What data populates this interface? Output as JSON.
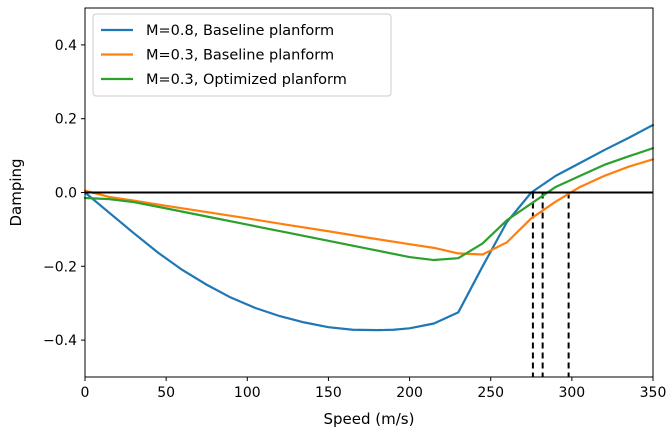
{
  "chart_data": {
    "type": "line",
    "title": "",
    "xlabel": "Speed (m/s)",
    "ylabel": "Damping",
    "xlim": [
      0,
      350
    ],
    "ylim": [
      -0.5,
      0.5
    ],
    "xticks": [
      0,
      50,
      100,
      150,
      200,
      250,
      300,
      350
    ],
    "yticks": [
      -0.4,
      -0.2,
      0.0,
      0.2,
      0.4
    ],
    "xtick_labels": [
      "0",
      "50",
      "100",
      "150",
      "200",
      "250",
      "300",
      "350"
    ],
    "ytick_labels": [
      "−0.4",
      "−0.2",
      "0.0",
      "0.2",
      "0.4"
    ],
    "grid": false,
    "legend_position": "top-left",
    "zero_line": {
      "y": 0.0,
      "color": "#000000"
    },
    "series": [
      {
        "name": "M=0.8, Baseline planform",
        "color": "#1f77b4",
        "x": [
          0,
          15,
          30,
          45,
          60,
          75,
          90,
          105,
          120,
          135,
          150,
          165,
          180,
          190,
          200,
          215,
          230,
          245,
          260,
          275,
          290,
          305,
          320,
          335,
          350
        ],
        "y": [
          0.0,
          -0.055,
          -0.11,
          -0.163,
          -0.21,
          -0.25,
          -0.285,
          -0.313,
          -0.335,
          -0.352,
          -0.365,
          -0.372,
          -0.373,
          -0.372,
          -0.368,
          -0.355,
          -0.325,
          -0.2,
          -0.08,
          0.0,
          0.045,
          0.08,
          0.115,
          0.148,
          0.183
        ]
      },
      {
        "name": "M=0.3, Baseline planform",
        "color": "#ff7f0e",
        "x": [
          0,
          15,
          30,
          50,
          75,
          100,
          125,
          150,
          175,
          200,
          215,
          230,
          245,
          260,
          275,
          290,
          305,
          320,
          335,
          350
        ],
        "y": [
          0.005,
          -0.012,
          -0.022,
          -0.036,
          -0.053,
          -0.07,
          -0.088,
          -0.105,
          -0.123,
          -0.14,
          -0.15,
          -0.165,
          -0.168,
          -0.135,
          -0.07,
          -0.025,
          0.015,
          0.045,
          0.07,
          0.09
        ]
      },
      {
        "name": "M=0.3, Optimized planform",
        "color": "#2ca02c",
        "x": [
          0,
          15,
          30,
          50,
          75,
          100,
          125,
          150,
          175,
          200,
          215,
          230,
          245,
          260,
          275,
          290,
          305,
          320,
          335,
          350
        ],
        "y": [
          -0.015,
          -0.018,
          -0.026,
          -0.043,
          -0.065,
          -0.087,
          -0.109,
          -0.131,
          -0.153,
          -0.175,
          -0.183,
          -0.178,
          -0.138,
          -0.075,
          -0.03,
          0.015,
          0.045,
          0.075,
          0.098,
          0.12
        ]
      }
    ],
    "crossing_markers": [
      {
        "x": 276,
        "style": "dashed",
        "color": "#000000"
      },
      {
        "x": 282,
        "style": "dashed",
        "color": "#000000"
      },
      {
        "x": 298,
        "style": "dashed",
        "color": "#000000"
      }
    ]
  }
}
